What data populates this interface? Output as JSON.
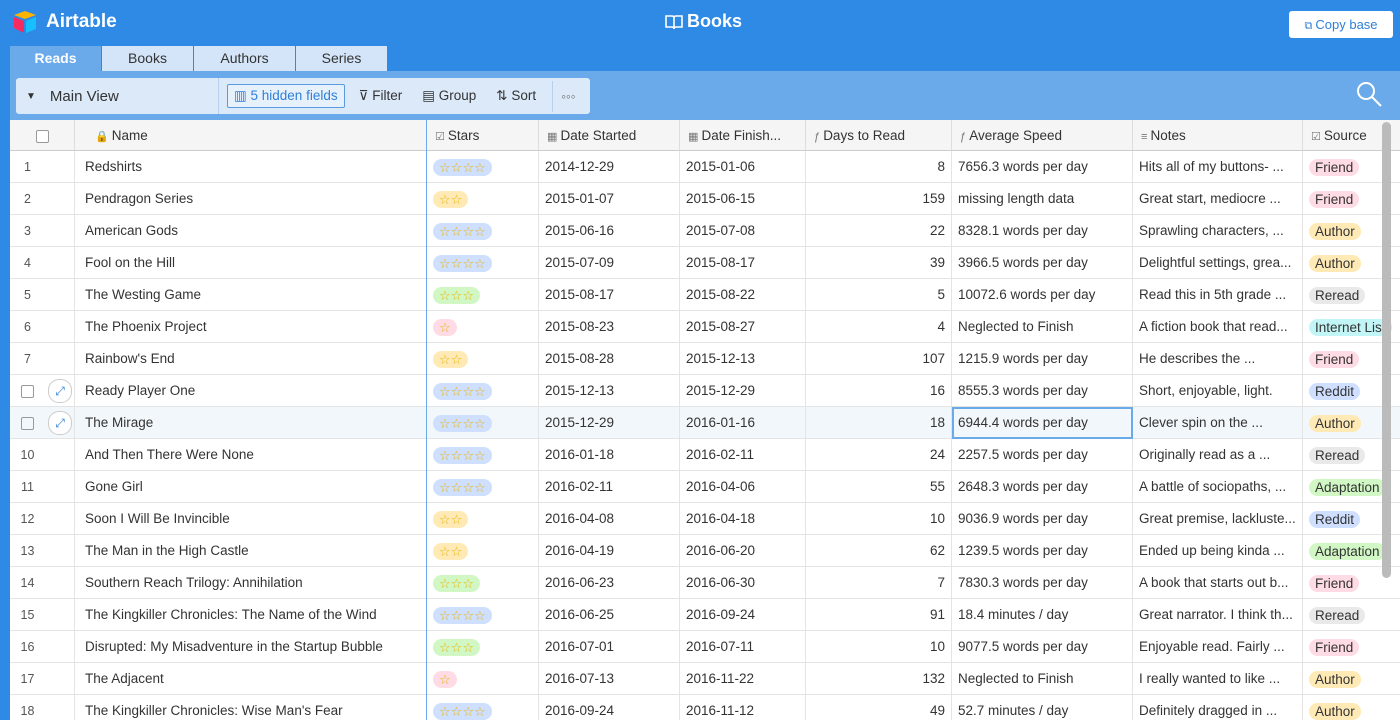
{
  "app": {
    "name": "Airtable",
    "base_title": "Books",
    "copy_button": "Copy base"
  },
  "tabs": [
    "Reads",
    "Books",
    "Authors",
    "Series"
  ],
  "active_tab": 0,
  "toolbar": {
    "view": "Main View",
    "hidden_fields": "5 hidden fields",
    "filter": "Filter",
    "group": "Group",
    "sort": "Sort"
  },
  "table": {
    "columns": {
      "name": "Name",
      "stars": "Stars",
      "date_started": "Date Started",
      "date_finished": "Date Finish...",
      "days": "Days to Read",
      "speed": "Average Speed",
      "notes": "Notes",
      "source": "Source"
    },
    "rows": [
      {
        "number": 1,
        "name": "Redshirts",
        "stars": 4,
        "stars_color": "#cfdfff",
        "date_started": "2014-12-29",
        "date_finished": "2015-01-06",
        "days": 8,
        "speed": "7656.3 words per day",
        "notes": "Hits all of my buttons- ...",
        "source": "Friend",
        "source_color": "#ffdce5"
      },
      {
        "number": 2,
        "name": "Pendragon Series",
        "stars": 2,
        "stars_color": "#ffeab6",
        "date_started": "2015-01-07",
        "date_finished": "2015-06-15",
        "days": 159,
        "speed": "missing length data",
        "notes": "Great start, mediocre ...",
        "source": "Friend",
        "source_color": "#ffdce5"
      },
      {
        "number": 3,
        "name": "American Gods",
        "stars": 4,
        "stars_color": "#cfdfff",
        "date_started": "2015-06-16",
        "date_finished": "2015-07-08",
        "days": 22,
        "speed": "8328.1 words per day",
        "notes": "Sprawling characters, ...",
        "source": "Author",
        "source_color": "#ffeab6"
      },
      {
        "number": 4,
        "name": "Fool on the Hill",
        "stars": 4,
        "stars_color": "#cfdfff",
        "date_started": "2015-07-09",
        "date_finished": "2015-08-17",
        "days": 39,
        "speed": "3966.5 words per day",
        "notes": "Delightful settings, grea...",
        "source": "Author",
        "source_color": "#ffeab6"
      },
      {
        "number": 5,
        "name": "The Westing Game",
        "stars": 3,
        "stars_color": "#d1f7c4",
        "date_started": "2015-08-17",
        "date_finished": "2015-08-22",
        "days": 5,
        "speed": "10072.6 words per day",
        "notes": "Read this in 5th grade ...",
        "source": "Reread",
        "source_color": "#e9e9e9"
      },
      {
        "number": 6,
        "name": "The Phoenix Project",
        "stars": 1,
        "stars_color": "#ffdce5",
        "date_started": "2015-08-23",
        "date_finished": "2015-08-27",
        "days": 4,
        "speed": "Neglected to Finish",
        "notes": "A fiction book that read...",
        "source": "Internet List",
        "source_color": "#c2f5f5"
      },
      {
        "number": 7,
        "name": "Rainbow's End",
        "stars": 2,
        "stars_color": "#ffeab6",
        "date_started": "2015-08-28",
        "date_finished": "2015-12-13",
        "days": 107,
        "speed": "1215.9 words per day",
        "notes": "He describes the ...",
        "source": "Friend",
        "source_color": "#ffdce5"
      },
      {
        "name": "Ready Player One",
        "stars": 4,
        "stars_color": "#cfdfff",
        "date_started": "2015-12-13",
        "date_finished": "2015-12-29",
        "days": 16,
        "speed": "8555.3 words per day",
        "notes": "Short, enjoyable, light.",
        "source": "Reddit",
        "source_color": "#cfdfff"
      },
      {
        "name": "The Mirage",
        "stars": 4,
        "stars_color": "#cfdfff",
        "date_started": "2015-12-29",
        "date_finished": "2016-01-16",
        "days": 18,
        "speed": "6944.4 words per day",
        "notes": "Clever spin on the ...",
        "source": "Author",
        "source_color": "#ffeab6"
      },
      {
        "number": 10,
        "name": "And Then There Were None",
        "stars": 4,
        "stars_color": "#cfdfff",
        "date_started": "2016-01-18",
        "date_finished": "2016-02-11",
        "days": 24,
        "speed": "2257.5 words per day",
        "notes": "Originally read as a ...",
        "source": "Reread",
        "source_color": "#e9e9e9"
      },
      {
        "number": 11,
        "name": "Gone Girl",
        "stars": 4,
        "stars_color": "#cfdfff",
        "date_started": "2016-02-11",
        "date_finished": "2016-04-06",
        "days": 55,
        "speed": "2648.3 words per day",
        "notes": "A battle of sociopaths, ...",
        "source": "Adaptation",
        "source_color": "#d1f7c4"
      },
      {
        "number": 12,
        "name": "Soon I Will Be Invincible",
        "stars": 2,
        "stars_color": "#ffeab6",
        "date_started": "2016-04-08",
        "date_finished": "2016-04-18",
        "days": 10,
        "speed": "9036.9 words per day",
        "notes": "Great premise, lackluste...",
        "source": "Reddit",
        "source_color": "#cfdfff"
      },
      {
        "number": 13,
        "name": "The Man in the High Castle",
        "stars": 2,
        "stars_color": "#ffeab6",
        "date_started": "2016-04-19",
        "date_finished": "2016-06-20",
        "days": 62,
        "speed": "1239.5 words per day",
        "notes": "Ended up being kinda ...",
        "source": "Adaptation",
        "source_color": "#d1f7c4"
      },
      {
        "number": 14,
        "name": "Southern Reach Trilogy: Annihilation",
        "stars": 3,
        "stars_color": "#d1f7c4",
        "date_started": "2016-06-23",
        "date_finished": "2016-06-30",
        "days": 7,
        "speed": "7830.3 words per day",
        "notes": "A book that starts out b...",
        "source": "Friend",
        "source_color": "#ffdce5"
      },
      {
        "number": 15,
        "name": "The Kingkiller Chronicles: The Name of the Wind",
        "stars": 4,
        "stars_color": "#cfdfff",
        "date_started": "2016-06-25",
        "date_finished": "2016-09-24",
        "days": 91,
        "speed": "18.4 minutes / day",
        "notes": "Great narrator. I think th...",
        "source": "Reread",
        "source_color": "#e9e9e9"
      },
      {
        "number": 16,
        "name": "Disrupted: My Misadventure in the Startup Bubble",
        "stars": 3,
        "stars_color": "#d1f7c4",
        "date_started": "2016-07-01",
        "date_finished": "2016-07-11",
        "days": 10,
        "speed": "9077.5 words per day",
        "notes": "Enjoyable read. Fairly ...",
        "source": "Friend",
        "source_color": "#ffdce5"
      },
      {
        "number": 17,
        "name": "The Adjacent",
        "stars": 1,
        "stars_color": "#ffdce5",
        "date_started": "2016-07-13",
        "date_finished": "2016-11-22",
        "days": 132,
        "speed": "Neglected to Finish",
        "notes": "I really wanted to like ...",
        "source": "Author",
        "source_color": "#ffeab6"
      },
      {
        "number": 18,
        "name": "The Kingkiller Chronicles: Wise Man's Fear",
        "stars": 4,
        "stars_color": "#cfdfff",
        "date_started": "2016-09-24",
        "date_finished": "2016-11-12",
        "days": 49,
        "speed": "52.7 minutes / day",
        "notes": "Definitely dragged in ...",
        "source": "Author",
        "source_color": "#ffeab6"
      }
    ]
  }
}
